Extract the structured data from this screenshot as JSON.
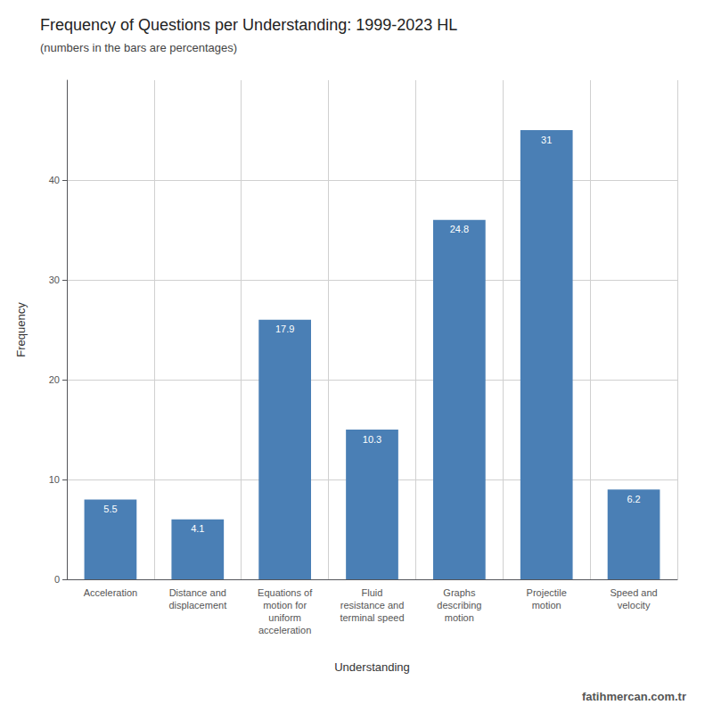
{
  "chart_data": {
    "type": "bar",
    "title": "Frequency of Questions per Understanding: 1999-2023 HL",
    "subtitle": "(numbers in the bars are percentages)",
    "xlabel": "Understanding",
    "ylabel": "Frequency",
    "annotations": [
      "fatihmercan.com.tr"
    ],
    "categories": [
      "Acceleration",
      "Distance and\ndisplacement",
      "Equations of\nmotion for\nuniform\nacceleration",
      "Fluid\nresistance and\nterminal speed",
      "Graphs\ndescribing\nmotion",
      "Projectile\nmotion",
      "Speed and\nvelocity"
    ],
    "values": [
      8,
      6,
      26,
      15,
      36,
      45,
      9
    ],
    "percentages": [
      5.5,
      4.1,
      17.9,
      10.3,
      24.8,
      31,
      6.2
    ],
    "color": "#4a7fb5",
    "ylim": [
      0,
      50
    ],
    "yticks": [
      0,
      10,
      20,
      30,
      40
    ],
    "grid": true
  }
}
